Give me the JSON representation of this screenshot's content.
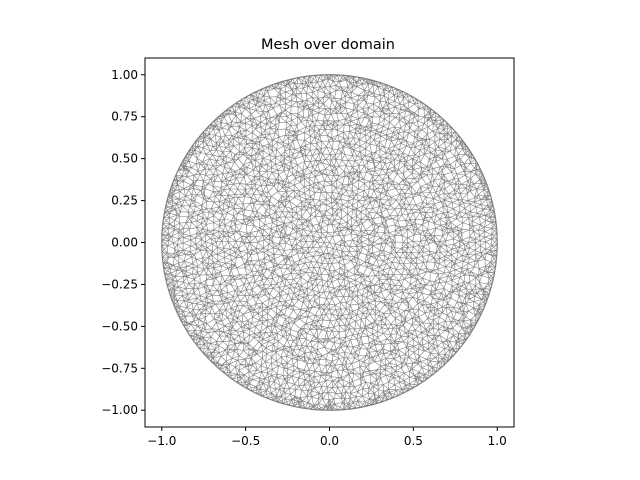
{
  "chart_data": {
    "type": "mesh",
    "title": "Mesh over domain",
    "xlabel": "",
    "ylabel": "",
    "xlim": [
      -1.1,
      1.1
    ],
    "ylim": [
      -1.1,
      1.1
    ],
    "xticks": [
      -1.0,
      -0.5,
      0.0,
      0.5,
      1.0
    ],
    "xtick_labels": [
      "−1.0",
      "−0.5",
      "0.0",
      "0.5",
      "1.0"
    ],
    "yticks": [
      1.0,
      0.75,
      0.5,
      0.25,
      0.0,
      -0.25,
      -0.5,
      -0.75,
      -1.0
    ],
    "ytick_labels": [
      "1.00",
      "0.75",
      "0.50",
      "0.25",
      "0.00",
      "−0.25",
      "−0.50",
      "−0.75",
      "−1.00"
    ],
    "domain": {
      "shape": "disk",
      "center": [
        0.0,
        0.0
      ],
      "radius": 1.0
    },
    "grid": false,
    "edge_color": "#7f7f7f"
  }
}
